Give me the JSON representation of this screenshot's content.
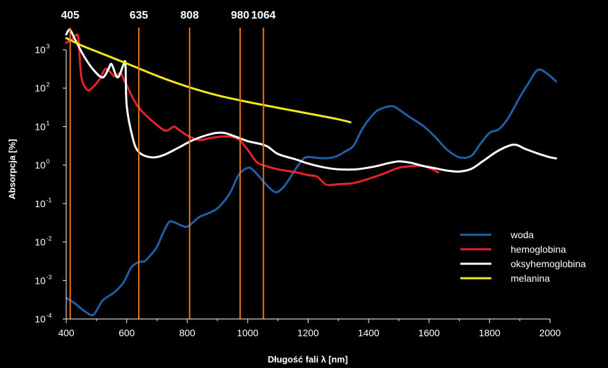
{
  "chart_data": {
    "type": "line",
    "xlabel": "Długość fali λ [nm]",
    "ylabel": "Absorpcja [%]",
    "xlim": [
      400,
      2000
    ],
    "ylim_exp": [
      -4,
      3
    ],
    "y_scale": "log",
    "grid": false,
    "legend_position": "bottom-right",
    "x_ticks": [
      "400",
      "600",
      "800",
      "1000",
      "1200",
      "1400",
      "1600",
      "1800",
      "2000"
    ],
    "y_ticks": [
      {
        "base": "10",
        "exp": "-4"
      },
      {
        "base": "10",
        "exp": "-3"
      },
      {
        "base": "10",
        "exp": "-2"
      },
      {
        "base": "10",
        "exp": "-1"
      },
      {
        "base": "10",
        "exp": "0"
      },
      {
        "base": "10",
        "exp": "1"
      },
      {
        "base": "10",
        "exp": "2"
      },
      {
        "base": "10",
        "exp": "3"
      }
    ],
    "markers": [
      {
        "label": "405",
        "x": 413
      },
      {
        "label": "635",
        "x": 640
      },
      {
        "label": "808",
        "x": 808
      },
      {
        "label": "980",
        "x": 975
      },
      {
        "label": "1064",
        "x": 1052
      }
    ],
    "marker_color": "#e87722",
    "series": [
      {
        "name": "woda",
        "color": "#1f5fa8",
        "points": [
          [
            400,
            0.00035
          ],
          [
            430,
            0.00025
          ],
          [
            460,
            0.00016
          ],
          [
            490,
            0.00013
          ],
          [
            520,
            0.0003
          ],
          [
            560,
            0.0005
          ],
          [
            590,
            0.0009
          ],
          [
            615,
            0.0022
          ],
          [
            640,
            0.003
          ],
          [
            660,
            0.0032
          ],
          [
            680,
            0.0047
          ],
          [
            700,
            0.0075
          ],
          [
            720,
            0.017
          ],
          [
            740,
            0.033
          ],
          [
            760,
            0.032
          ],
          [
            780,
            0.027
          ],
          [
            800,
            0.025
          ],
          [
            820,
            0.033
          ],
          [
            840,
            0.045
          ],
          [
            860,
            0.052
          ],
          [
            900,
            0.075
          ],
          [
            940,
            0.18
          ],
          [
            970,
            0.55
          ],
          [
            1000,
            0.85
          ],
          [
            1020,
            0.72
          ],
          [
            1060,
            0.32
          ],
          [
            1090,
            0.2
          ],
          [
            1110,
            0.23
          ],
          [
            1130,
            0.35
          ],
          [
            1150,
            0.62
          ],
          [
            1180,
            1.35
          ],
          [
            1200,
            1.62
          ],
          [
            1250,
            1.5
          ],
          [
            1290,
            1.65
          ],
          [
            1320,
            2.2
          ],
          [
            1350,
            3.2
          ],
          [
            1380,
            9
          ],
          [
            1420,
            23
          ],
          [
            1450,
            31
          ],
          [
            1480,
            34
          ],
          [
            1500,
            28
          ],
          [
            1530,
            19
          ],
          [
            1580,
            10.5
          ],
          [
            1620,
            5.4
          ],
          [
            1660,
            2.5
          ],
          [
            1700,
            1.6
          ],
          [
            1740,
            1.75
          ],
          [
            1770,
            3.6
          ],
          [
            1800,
            6.9
          ],
          [
            1830,
            8.5
          ],
          [
            1860,
            16
          ],
          [
            1900,
            58
          ],
          [
            1930,
            140
          ],
          [
            1960,
            300
          ],
          [
            1990,
            240
          ],
          [
            2020,
            150
          ]
        ]
      },
      {
        "name": "hemoglobina",
        "color": "#e8232b",
        "points": [
          [
            400,
            1500
          ],
          [
            410,
            1700
          ],
          [
            420,
            1900
          ],
          [
            430,
            2300
          ],
          [
            440,
            2000
          ],
          [
            450,
            200
          ],
          [
            470,
            90
          ],
          [
            490,
            110
          ],
          [
            510,
            170
          ],
          [
            530,
            320
          ],
          [
            550,
            240
          ],
          [
            560,
            200
          ],
          [
            570,
            220
          ],
          [
            580,
            250
          ],
          [
            590,
            170
          ],
          [
            600,
            120
          ],
          [
            630,
            40
          ],
          [
            660,
            21
          ],
          [
            700,
            11
          ],
          [
            730,
            7.8
          ],
          [
            755,
            10
          ],
          [
            770,
            8.6
          ],
          [
            800,
            5.9
          ],
          [
            840,
            4.5
          ],
          [
            880,
            5.1
          ],
          [
            930,
            5.6
          ],
          [
            970,
            4.7
          ],
          [
            1000,
            2.5
          ],
          [
            1030,
            1.2
          ],
          [
            1060,
            0.95
          ],
          [
            1100,
            0.78
          ],
          [
            1160,
            0.65
          ],
          [
            1200,
            0.55
          ],
          [
            1230,
            0.5
          ],
          [
            1260,
            0.31
          ],
          [
            1300,
            0.32
          ],
          [
            1350,
            0.34
          ],
          [
            1400,
            0.44
          ],
          [
            1450,
            0.6
          ],
          [
            1500,
            0.85
          ],
          [
            1550,
            0.95
          ],
          [
            1580,
            0.95
          ],
          [
            1610,
            0.78
          ],
          [
            1630,
            0.65
          ]
        ]
      },
      {
        "name": "oksyhemoglobina",
        "color": "#ffffff",
        "points": [
          [
            400,
            2500
          ],
          [
            412,
            3300
          ],
          [
            430,
            1800
          ],
          [
            460,
            650
          ],
          [
            490,
            300
          ],
          [
            520,
            190
          ],
          [
            540,
            320
          ],
          [
            550,
            420
          ],
          [
            570,
            190
          ],
          [
            590,
            420
          ],
          [
            596,
            400
          ],
          [
            600,
            35
          ],
          [
            620,
            5
          ],
          [
            640,
            2.2
          ],
          [
            680,
            1.6
          ],
          [
            720,
            1.8
          ],
          [
            770,
            2.8
          ],
          [
            820,
            4.5
          ],
          [
            880,
            6.5
          ],
          [
            920,
            6.9
          ],
          [
            960,
            5.5
          ],
          [
            1000,
            4.2
          ],
          [
            1060,
            3.2
          ],
          [
            1100,
            1.95
          ],
          [
            1160,
            1.4
          ],
          [
            1200,
            1.1
          ],
          [
            1250,
            0.88
          ],
          [
            1300,
            0.78
          ],
          [
            1360,
            0.78
          ],
          [
            1420,
            0.92
          ],
          [
            1460,
            1.1
          ],
          [
            1500,
            1.25
          ],
          [
            1540,
            1.15
          ],
          [
            1580,
            0.95
          ],
          [
            1620,
            0.83
          ],
          [
            1660,
            0.72
          ],
          [
            1700,
            0.68
          ],
          [
            1740,
            0.8
          ],
          [
            1780,
            1.3
          ],
          [
            1830,
            2.4
          ],
          [
            1880,
            3.4
          ],
          [
            1920,
            2.6
          ],
          [
            1960,
            2
          ],
          [
            2000,
            1.6
          ],
          [
            2020,
            1.5
          ]
        ]
      },
      {
        "name": "melanina",
        "color": "#f5e81e",
        "points": [
          [
            400,
            2000
          ],
          [
            450,
            1300
          ],
          [
            500,
            900
          ],
          [
            600,
            440
          ],
          [
            700,
            210
          ],
          [
            800,
            110
          ],
          [
            900,
            65
          ],
          [
            1000,
            44
          ],
          [
            1100,
            31
          ],
          [
            1200,
            22
          ],
          [
            1300,
            15.5
          ],
          [
            1340,
            13
          ]
        ]
      }
    ]
  }
}
